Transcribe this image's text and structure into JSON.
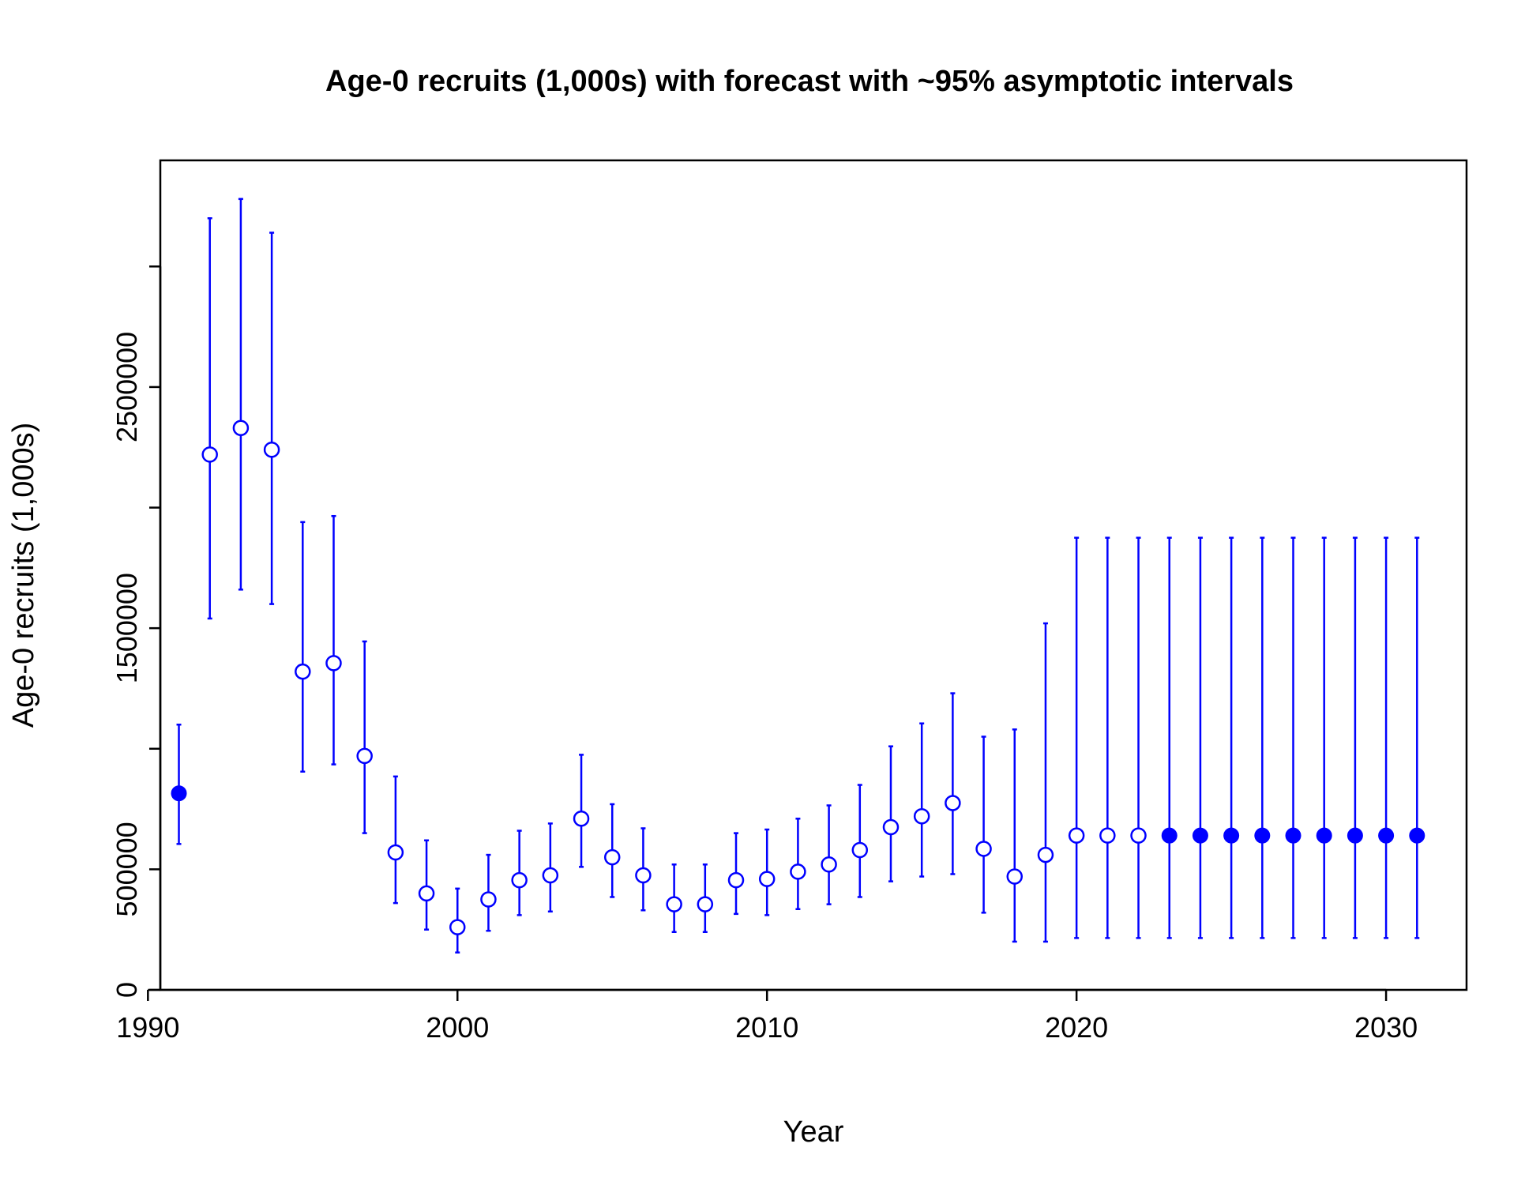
{
  "chart_data": {
    "type": "scatter",
    "title": "Age-0 recruits (1,000s) with forecast with ~95% asymptotic intervals",
    "xlabel": "Year",
    "ylabel": "Age-0 recruits (1,000s)",
    "xlim": [
      1990.4,
      2032.6
    ],
    "ylim": [
      0,
      3440000
    ],
    "x_ticks": [
      1990,
      2000,
      2010,
      2020,
      2030
    ],
    "x_tick_labels": [
      "1990",
      "2000",
      "2010",
      "2020",
      "2030"
    ],
    "y_ticks": [
      0,
      500000,
      1000000,
      1500000,
      2000000,
      2500000,
      3000000
    ],
    "y_tick_labels": [
      "0",
      "500000",
      "",
      "1500000",
      "",
      "2500000",
      ""
    ],
    "grid": false,
    "legend": "none",
    "color": "#0000ff",
    "series": [
      {
        "marker": "filled",
        "points": [
          {
            "x": 1991,
            "y": 815000,
            "lower": 605000,
            "upper": 1100000
          }
        ]
      },
      {
        "marker": "open",
        "points": [
          {
            "x": 1992,
            "y": 2220000,
            "lower": 1540000,
            "upper": 3200000
          },
          {
            "x": 1993,
            "y": 2330000,
            "lower": 1660000,
            "upper": 3280000
          },
          {
            "x": 1994,
            "y": 2240000,
            "lower": 1600000,
            "upper": 3140000
          },
          {
            "x": 1995,
            "y": 1320000,
            "lower": 905000,
            "upper": 1940000
          },
          {
            "x": 1996,
            "y": 1355000,
            "lower": 935000,
            "upper": 1965000
          },
          {
            "x": 1997,
            "y": 970000,
            "lower": 650000,
            "upper": 1445000
          },
          {
            "x": 1998,
            "y": 570000,
            "lower": 360000,
            "upper": 885000
          },
          {
            "x": 1999,
            "y": 400000,
            "lower": 250000,
            "upper": 620000
          },
          {
            "x": 2000,
            "y": 260000,
            "lower": 155000,
            "upper": 420000
          },
          {
            "x": 2001,
            "y": 375000,
            "lower": 245000,
            "upper": 560000
          },
          {
            "x": 2002,
            "y": 455000,
            "lower": 310000,
            "upper": 660000
          },
          {
            "x": 2003,
            "y": 475000,
            "lower": 325000,
            "upper": 690000
          },
          {
            "x": 2004,
            "y": 710000,
            "lower": 510000,
            "upper": 975000
          },
          {
            "x": 2005,
            "y": 550000,
            "lower": 385000,
            "upper": 770000
          },
          {
            "x": 2006,
            "y": 475000,
            "lower": 330000,
            "upper": 670000
          },
          {
            "x": 2007,
            "y": 355000,
            "lower": 240000,
            "upper": 520000
          },
          {
            "x": 2008,
            "y": 355000,
            "lower": 240000,
            "upper": 520000
          },
          {
            "x": 2009,
            "y": 455000,
            "lower": 315000,
            "upper": 650000
          },
          {
            "x": 2010,
            "y": 460000,
            "lower": 310000,
            "upper": 665000
          },
          {
            "x": 2011,
            "y": 490000,
            "lower": 335000,
            "upper": 710000
          },
          {
            "x": 2012,
            "y": 520000,
            "lower": 355000,
            "upper": 765000
          },
          {
            "x": 2013,
            "y": 580000,
            "lower": 385000,
            "upper": 850000
          },
          {
            "x": 2014,
            "y": 675000,
            "lower": 450000,
            "upper": 1010000
          },
          {
            "x": 2015,
            "y": 720000,
            "lower": 470000,
            "upper": 1105000
          },
          {
            "x": 2016,
            "y": 775000,
            "lower": 480000,
            "upper": 1230000
          },
          {
            "x": 2017,
            "y": 585000,
            "lower": 320000,
            "upper": 1050000
          },
          {
            "x": 2018,
            "y": 470000,
            "lower": 200000,
            "upper": 1080000
          },
          {
            "x": 2019,
            "y": 560000,
            "lower": 200000,
            "upper": 1520000
          },
          {
            "x": 2020,
            "y": 640000,
            "lower": 215000,
            "upper": 1875000
          },
          {
            "x": 2021,
            "y": 640000,
            "lower": 215000,
            "upper": 1875000
          },
          {
            "x": 2022,
            "y": 640000,
            "lower": 215000,
            "upper": 1875000
          }
        ]
      },
      {
        "marker": "filled",
        "points": [
          {
            "x": 2023,
            "y": 640000,
            "lower": 215000,
            "upper": 1875000
          },
          {
            "x": 2024,
            "y": 640000,
            "lower": 215000,
            "upper": 1875000
          },
          {
            "x": 2025,
            "y": 640000,
            "lower": 215000,
            "upper": 1875000
          },
          {
            "x": 2026,
            "y": 640000,
            "lower": 215000,
            "upper": 1875000
          },
          {
            "x": 2027,
            "y": 640000,
            "lower": 215000,
            "upper": 1875000
          },
          {
            "x": 2028,
            "y": 640000,
            "lower": 215000,
            "upper": 1875000
          },
          {
            "x": 2029,
            "y": 640000,
            "lower": 215000,
            "upper": 1875000
          },
          {
            "x": 2030,
            "y": 640000,
            "lower": 215000,
            "upper": 1875000
          },
          {
            "x": 2031,
            "y": 640000,
            "lower": 215000,
            "upper": 1875000
          }
        ]
      }
    ]
  }
}
